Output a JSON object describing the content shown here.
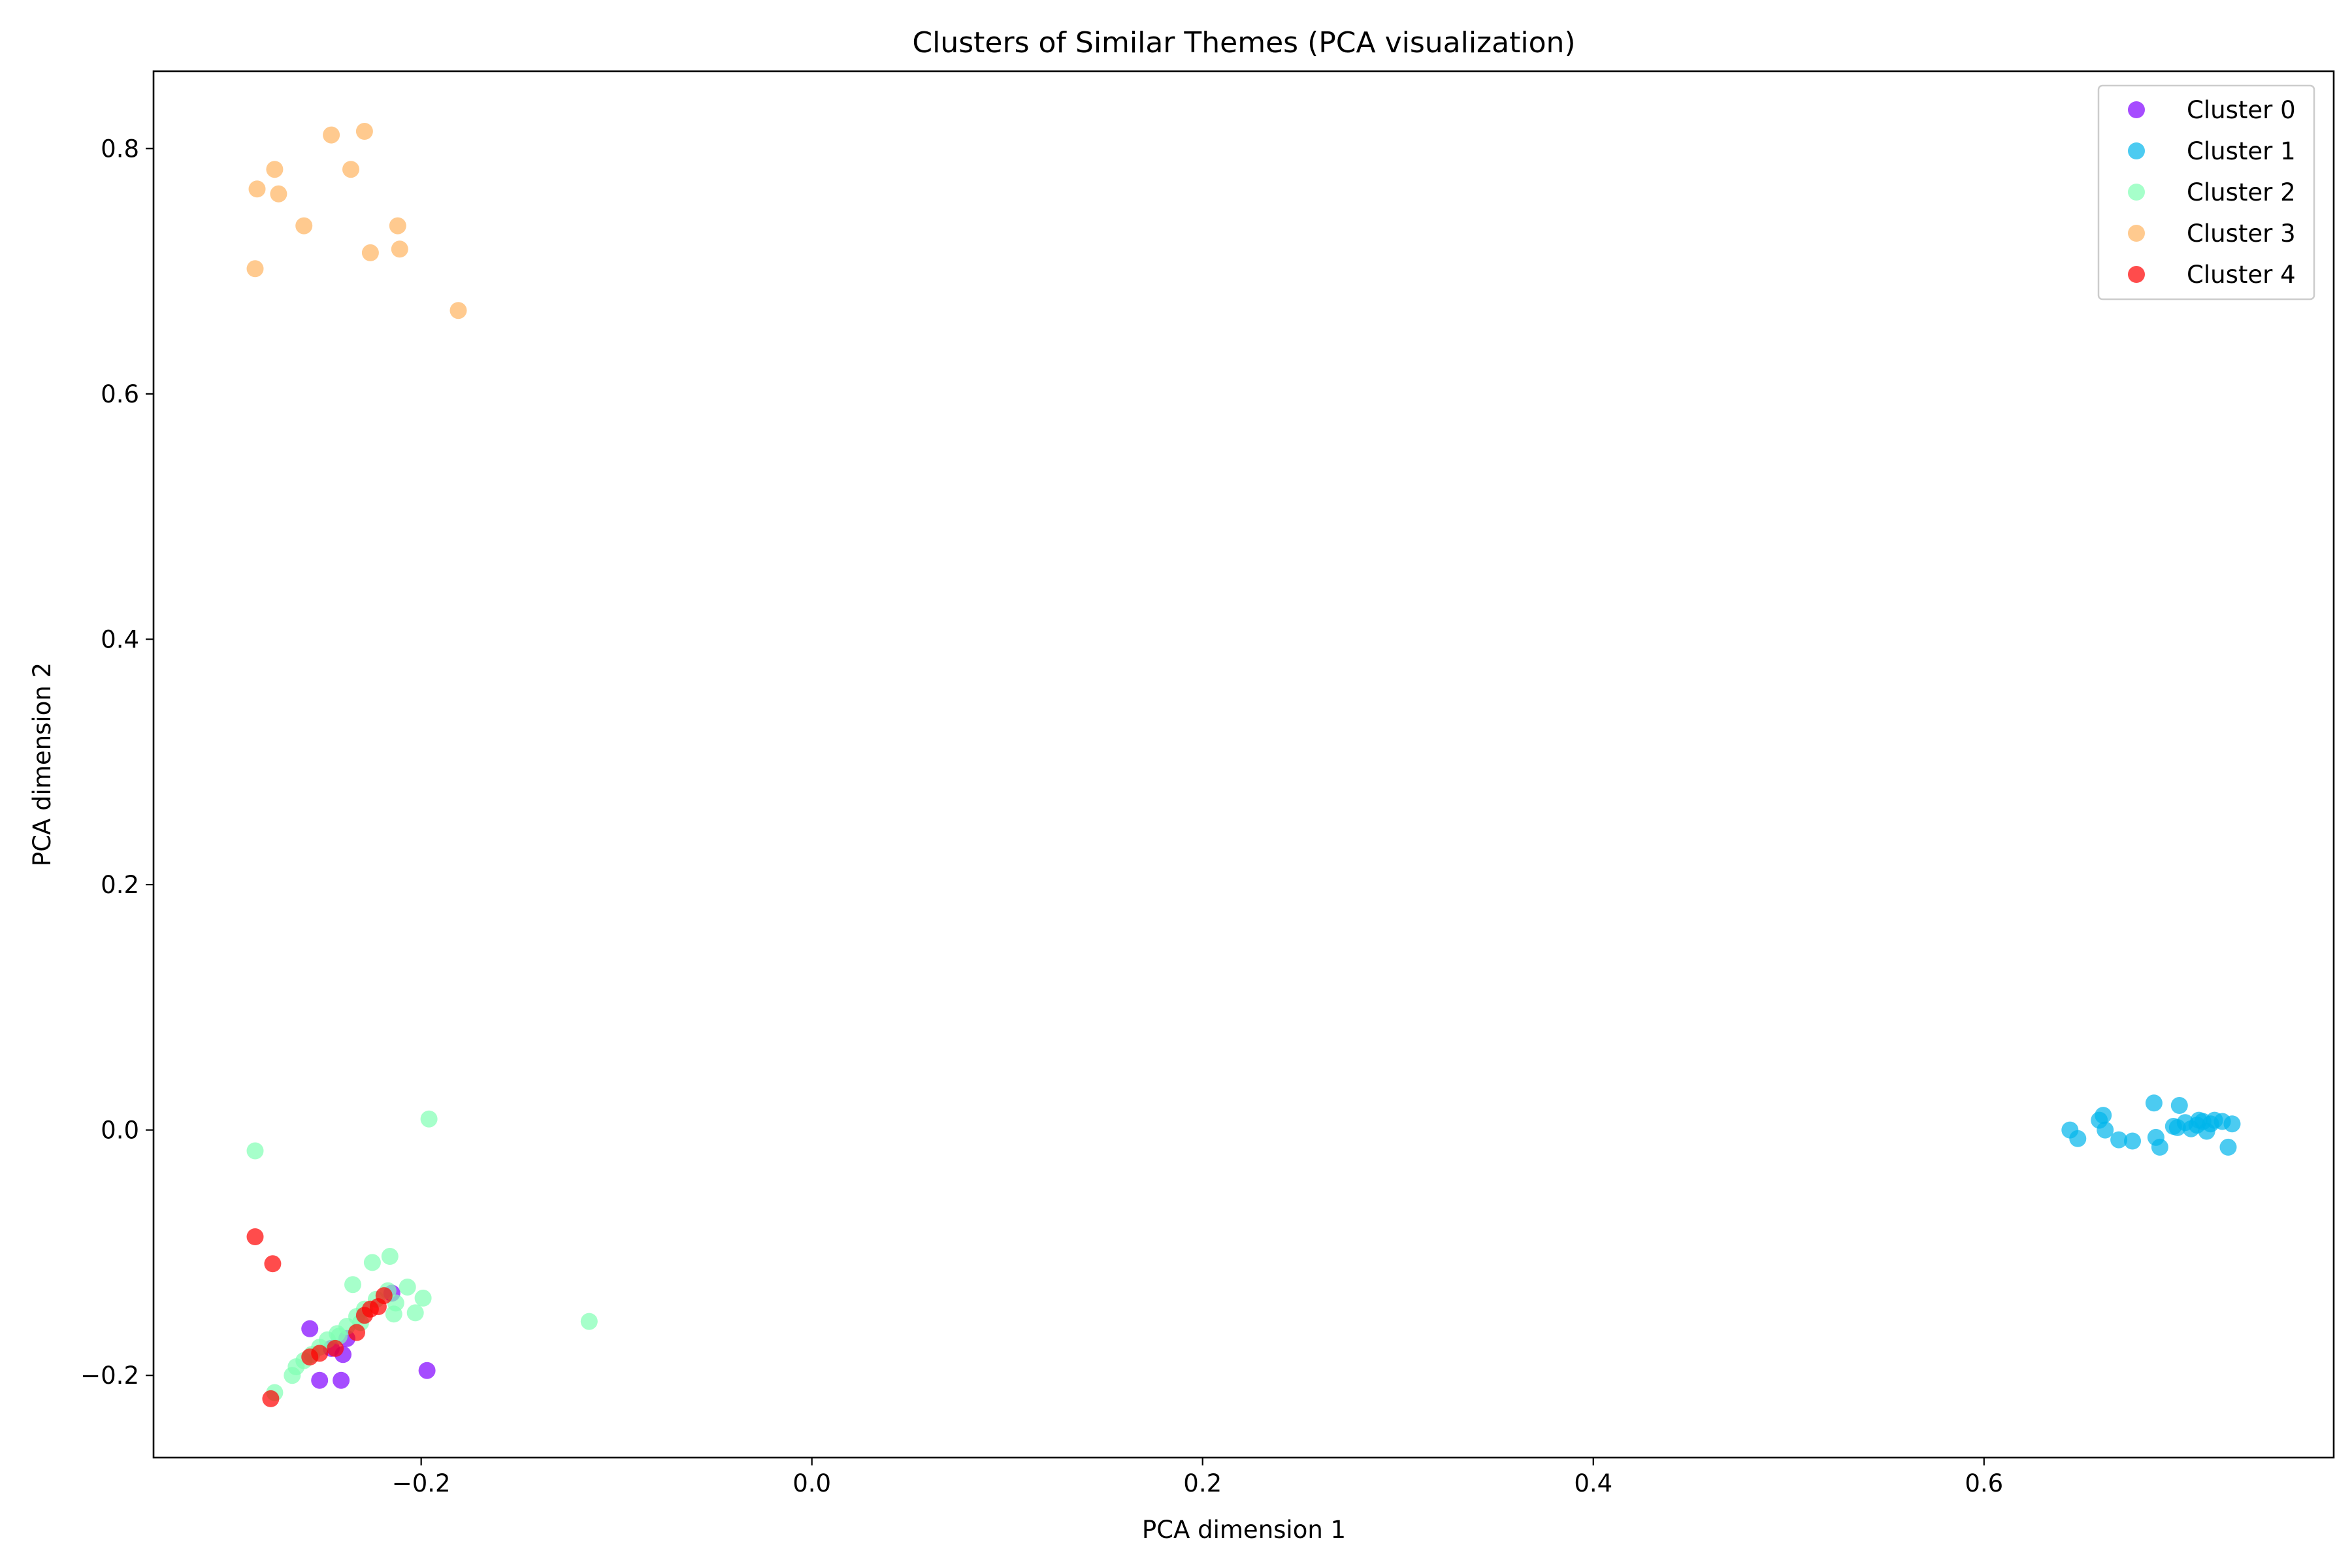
{
  "chart_data": {
    "type": "scatter",
    "title": "Clusters of Similar Themes (PCA visualization)",
    "xlabel": "PCA dimension 1",
    "ylabel": "PCA dimension 2",
    "xlim": [
      -0.337,
      0.779
    ],
    "ylim": [
      -0.267,
      0.863
    ],
    "xticks": [
      -0.2,
      0.0,
      0.2,
      0.4,
      0.6
    ],
    "xtick_labels": [
      "−0.2",
      "0.0",
      "0.2",
      "0.4",
      "0.6"
    ],
    "yticks": [
      -0.2,
      0.0,
      0.2,
      0.4,
      0.6,
      0.8
    ],
    "ytick_labels": [
      "−0.2",
      "0.0",
      "0.2",
      "0.4",
      "0.6",
      "0.8"
    ],
    "grid": false,
    "legend_position": "top-right",
    "marker_opacity": 0.7,
    "series": [
      {
        "name": "Cluster 0",
        "color": "#8000ff",
        "points": [
          [
            -0.257,
            -0.162
          ],
          [
            -0.252,
            -0.204
          ],
          [
            -0.241,
            -0.204
          ],
          [
            -0.24,
            -0.183
          ],
          [
            -0.197,
            -0.196
          ],
          [
            -0.246,
            -0.178
          ],
          [
            -0.238,
            -0.17
          ],
          [
            -0.215,
            -0.133
          ]
        ]
      },
      {
        "name": "Cluster 1",
        "color": "#00b5eb",
        "points": [
          [
            0.644,
            0.0
          ],
          [
            0.648,
            -0.007
          ],
          [
            0.659,
            0.008
          ],
          [
            0.661,
            0.012
          ],
          [
            0.662,
            0.0
          ],
          [
            0.669,
            -0.008
          ],
          [
            0.676,
            -0.009
          ],
          [
            0.687,
            0.022
          ],
          [
            0.688,
            -0.006
          ],
          [
            0.69,
            -0.014
          ],
          [
            0.697,
            0.003
          ],
          [
            0.7,
            0.02
          ],
          [
            0.703,
            0.006
          ],
          [
            0.706,
            0.001
          ],
          [
            0.709,
            0.004
          ],
          [
            0.712,
            0.007
          ],
          [
            0.714,
            -0.001
          ],
          [
            0.716,
            0.005
          ],
          [
            0.718,
            0.008
          ],
          [
            0.722,
            0.007
          ],
          [
            0.725,
            -0.014
          ],
          [
            0.727,
            0.005
          ],
          [
            0.71,
            0.008
          ],
          [
            0.699,
            0.002
          ]
        ]
      },
      {
        "name": "Cluster 2",
        "color": "#80ffb4",
        "points": [
          [
            -0.285,
            -0.017
          ],
          [
            -0.196,
            0.009
          ],
          [
            -0.114,
            -0.156
          ],
          [
            -0.216,
            -0.103
          ],
          [
            -0.225,
            -0.108
          ],
          [
            -0.235,
            -0.126
          ],
          [
            -0.207,
            -0.128
          ],
          [
            -0.199,
            -0.137
          ],
          [
            -0.203,
            -0.149
          ],
          [
            -0.214,
            -0.15
          ],
          [
            -0.213,
            -0.141
          ],
          [
            -0.217,
            -0.131
          ],
          [
            -0.223,
            -0.138
          ],
          [
            -0.229,
            -0.146
          ],
          [
            -0.233,
            -0.152
          ],
          [
            -0.238,
            -0.16
          ],
          [
            -0.242,
            -0.168
          ],
          [
            -0.248,
            -0.171
          ],
          [
            -0.252,
            -0.177
          ],
          [
            -0.256,
            -0.183
          ],
          [
            -0.26,
            -0.188
          ],
          [
            -0.264,
            -0.193
          ],
          [
            -0.266,
            -0.2
          ],
          [
            -0.275,
            -0.214
          ],
          [
            -0.243,
            -0.166
          ],
          [
            -0.231,
            -0.157
          ]
        ]
      },
      {
        "name": "Cluster 3",
        "color": "#ffb360",
        "points": [
          [
            -0.284,
            0.767
          ],
          [
            -0.275,
            0.783
          ],
          [
            -0.273,
            0.763
          ],
          [
            -0.246,
            0.811
          ],
          [
            -0.229,
            0.814
          ],
          [
            -0.236,
            0.783
          ],
          [
            -0.26,
            0.737
          ],
          [
            -0.212,
            0.737
          ],
          [
            -0.211,
            0.718
          ],
          [
            -0.226,
            0.715
          ],
          [
            -0.285,
            0.702
          ],
          [
            -0.181,
            0.668
          ]
        ]
      },
      {
        "name": "Cluster 4",
        "color": "#ff0000",
        "points": [
          [
            -0.285,
            -0.087
          ],
          [
            -0.276,
            -0.109
          ],
          [
            -0.219,
            -0.135
          ],
          [
            -0.222,
            -0.144
          ],
          [
            -0.226,
            -0.146
          ],
          [
            -0.229,
            -0.151
          ],
          [
            -0.233,
            -0.165
          ],
          [
            -0.244,
            -0.178
          ],
          [
            -0.252,
            -0.182
          ],
          [
            -0.257,
            -0.185
          ],
          [
            -0.277,
            -0.219
          ]
        ]
      }
    ]
  }
}
